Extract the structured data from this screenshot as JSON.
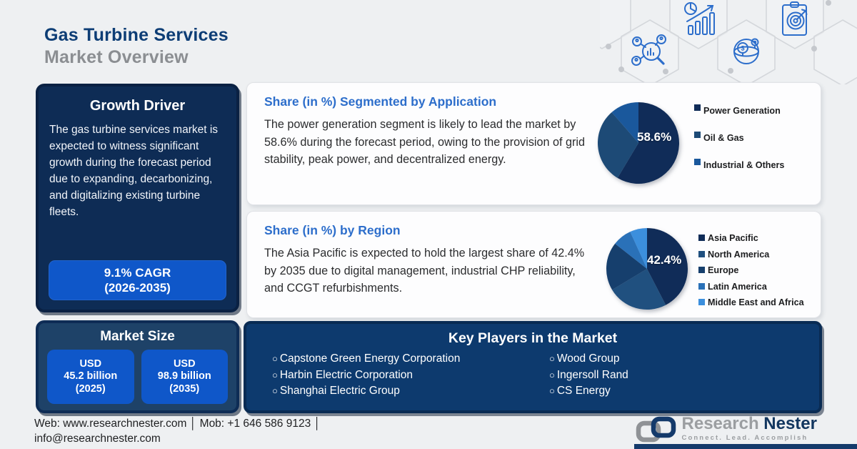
{
  "header": {
    "title_line1": "Gas Turbine Services",
    "title_line2": "Market Overview"
  },
  "growth_driver": {
    "title": "Growth Driver",
    "body": "The gas turbine services market is expected to witness significant growth during the forecast period due to expanding, decarbonizing, and digitalizing existing turbine fleets.",
    "cagr_line1": "9.1% CAGR",
    "cagr_line2": "(2026-2035)"
  },
  "market_size": {
    "title": "Market Size",
    "items": [
      {
        "line1": "USD",
        "line2": "45.2 billion",
        "line3": "(2025)"
      },
      {
        "line1": "USD",
        "line2": "98.9 billion",
        "line3": "(2035)"
      }
    ]
  },
  "cards": [
    {
      "heading": "Share (in %) Segmented by Application",
      "body": "The power generation segment is likely to lead the market by 58.6% during the forecast period, owing to the provision of grid stability, peak power, and decentralized energy."
    },
    {
      "heading": "Share (in %) by Region",
      "body": "The Asia Pacific is expected to hold the largest share of 42.4% by 2035 due to digital management, industrial CHP reliability, and CCGT refurbishments."
    }
  ],
  "chart_data": [
    {
      "type": "pie",
      "title": "Share (in %) Segmented by Application",
      "labels": [
        "Power Generation",
        "Oil & Gas",
        "Industrial & Others"
      ],
      "values": [
        58.6,
        30.0,
        11.4
      ],
      "colors": [
        "#102c58",
        "#1d4a76",
        "#1a589c"
      ],
      "label_text": "58.6%",
      "legend_position": "right"
    },
    {
      "type": "pie",
      "title": "Share (in %) by Region",
      "labels": [
        "Asia Pacific",
        "North America",
        "Europe",
        "Latin America",
        "Middle East and Africa"
      ],
      "values": [
        42.4,
        24.0,
        19.2,
        7.6,
        6.8
      ],
      "colors": [
        "#102c58",
        "#20507f",
        "#163f6d",
        "#2a71b8",
        "#3c8fdd"
      ],
      "label_text": "42.4%",
      "legend_position": "right"
    }
  ],
  "key_players": {
    "title": "Key Players in the Market",
    "bullet": "○",
    "columns": [
      [
        "Capstone Green Energy Corporation",
        "Harbin Electric Corporation",
        "Shanghai Electric Group"
      ],
      [
        "Wood Group",
        "Ingersoll Rand",
        "CS Energy"
      ]
    ]
  },
  "footer": {
    "contact_line1": "Web: www.researchnester.com │ Mob: +1 646 586 9123 │",
    "contact_line2": "info@researchnester.com",
    "brand_word1": "Research ",
    "brand_word2": "Nester",
    "tagline": "Connect. Lead. Accomplish"
  },
  "colors": {
    "panel_navy": "#0e2c55",
    "panel_mid_navy": "#1e4268",
    "players_navy": "#0d3a6e",
    "accent_blue": "#0f57c9",
    "heading_blue": "#2d6ecb",
    "title_navy": "#0d3d75",
    "title_gray": "#8b8e92",
    "background": "#eef0f2"
  }
}
